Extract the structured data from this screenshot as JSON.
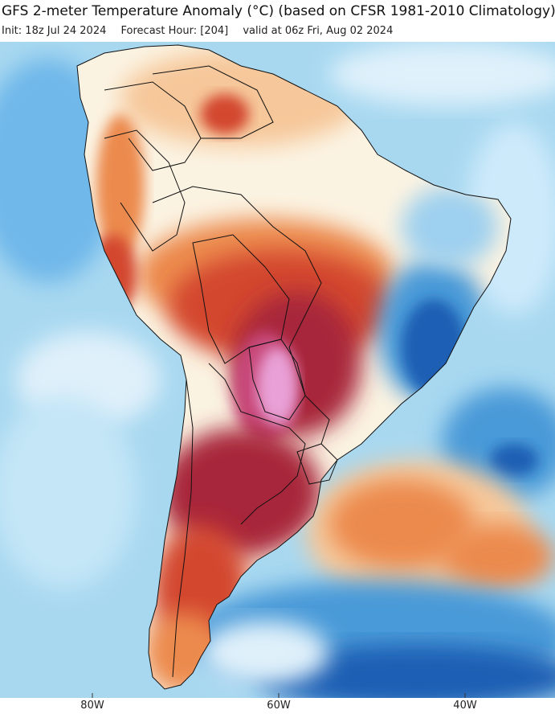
{
  "header": {
    "title": "GFS 2-meter Temperature Anomaly (°C) (based on CFSR 1981-2010 Climatology)",
    "init": "Init: 18z Jul 24 2024",
    "forecast_hour": "Forecast Hour: [204]",
    "valid": "valid at 06z Fri, Aug 02 2024"
  },
  "axis": {
    "longitudes": [
      "80W",
      "60W",
      "40W"
    ]
  },
  "colors": {
    "ocean_base": "#a8d8f0",
    "land_neutral": "#fbf3e2",
    "warm_light": "#f6c79a",
    "warm": "#ec8a4e",
    "hot": "#d3462f",
    "very_hot": "#a8283b",
    "extreme": "#c8487a",
    "peak": "#e8a0d6",
    "cool_light": "#9ed0ef",
    "cool": "#4a9ad8",
    "cold": "#1f5fb4",
    "border": "#111111"
  }
}
